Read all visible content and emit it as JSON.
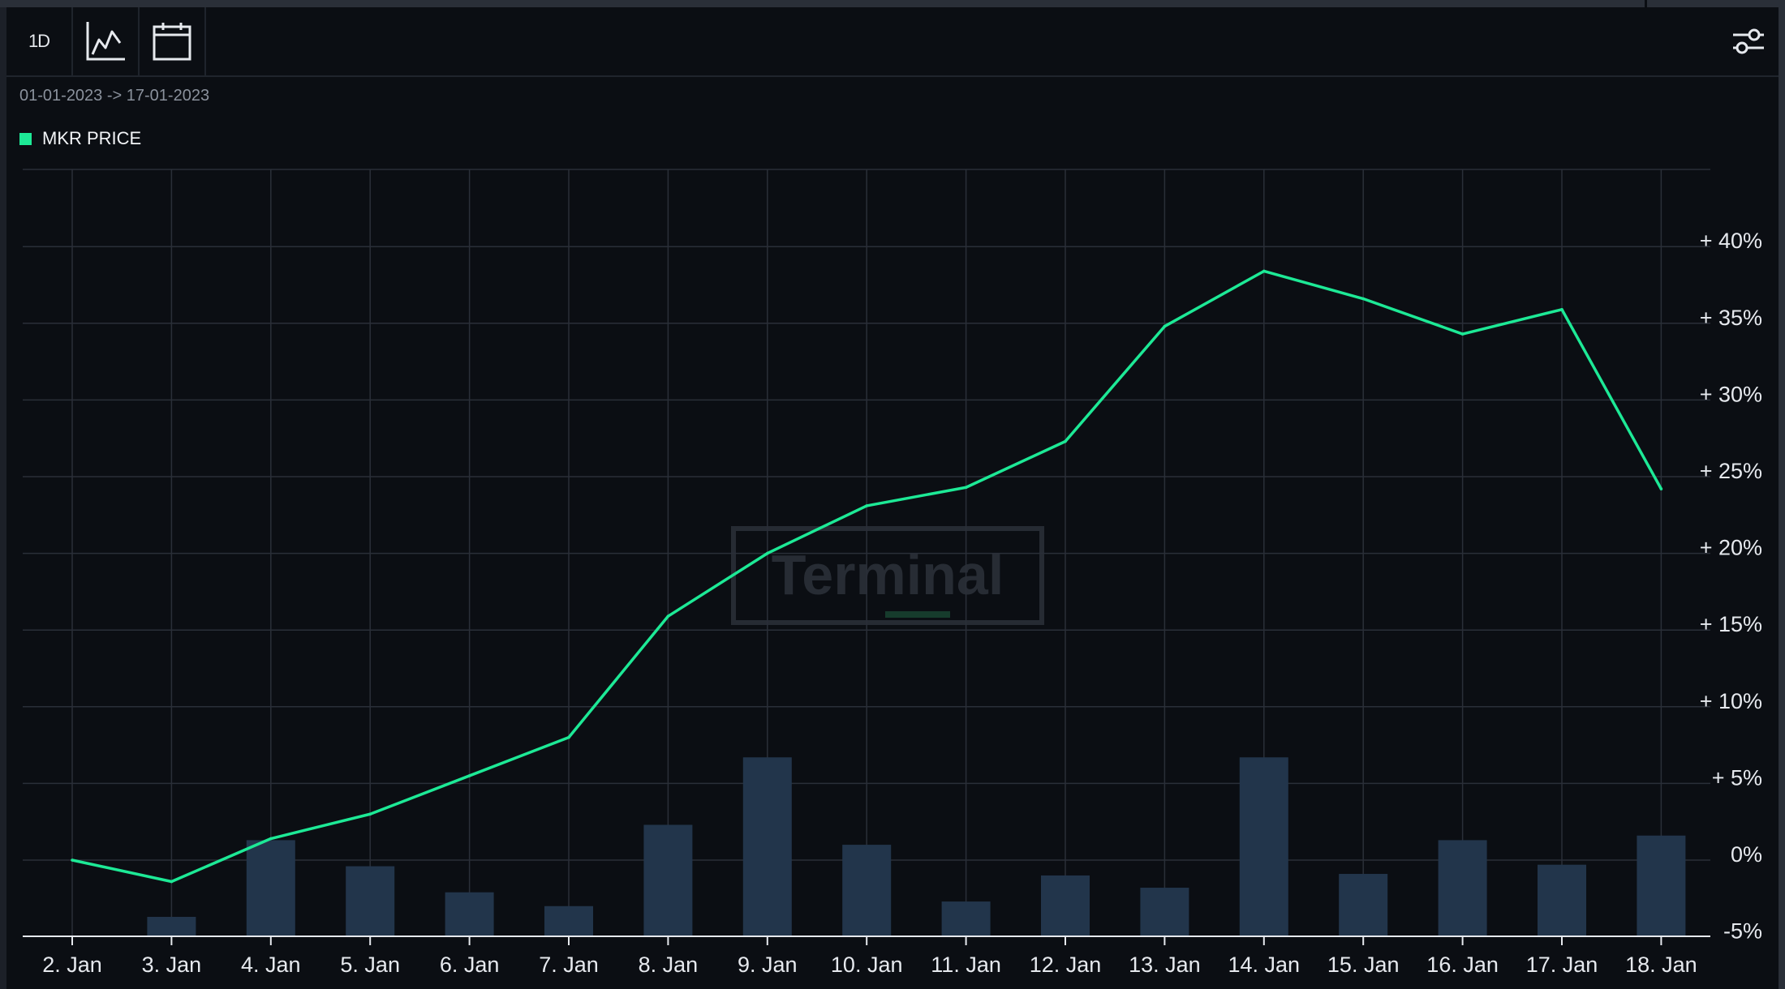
{
  "toolbar": {
    "period_label": "1D",
    "chart_type_icon": "line-chart-icon",
    "calendar_icon": "calendar-icon",
    "settings_icon": "sliders-icon"
  },
  "date_range": "01-01-2023 -> 17-01-2023",
  "watermark": "Terminal",
  "colors": {
    "background": "#0b0e13",
    "line": "#1de996",
    "bars": "#22354b",
    "grid": "#2a2f38",
    "text": "#e6e9ee"
  },
  "chart_data": {
    "type": "line",
    "title": "",
    "xlabel": "",
    "ylabel": "",
    "categories": [
      "2. Jan",
      "3. Jan",
      "4. Jan",
      "5. Jan",
      "6. Jan",
      "7. Jan",
      "8. Jan",
      "9. Jan",
      "10. Jan",
      "11. Jan",
      "12. Jan",
      "13. Jan",
      "14. Jan",
      "15. Jan",
      "16. Jan",
      "17. Jan",
      "18. Jan"
    ],
    "series": [
      {
        "name": "MKR PRICE",
        "type": "line",
        "values": [
          0.0,
          -1.4,
          1.4,
          3.0,
          5.5,
          8.0,
          15.9,
          20.0,
          23.1,
          24.3,
          27.3,
          34.8,
          38.4,
          36.6,
          34.3,
          35.9,
          24.2
        ]
      },
      {
        "type": "bar",
        "values": [
          null,
          -3.7,
          1.3,
          -0.4,
          -2.1,
          -3.0,
          2.3,
          6.7,
          1.0,
          -2.7,
          -1.0,
          -1.8,
          6.7,
          -0.9,
          1.3,
          -0.3,
          1.6
        ]
      }
    ],
    "y_axis": {
      "position": "right",
      "ticks": [
        40,
        35,
        30,
        25,
        20,
        15,
        10,
        5,
        0,
        -5
      ],
      "tick_labels": [
        "+ 40%",
        "+ 35%",
        "+ 30%",
        "+ 25%",
        "+ 20%",
        "+ 15%",
        "+ 10%",
        "+ 5%",
        "0%",
        "-5%"
      ],
      "ylim": [
        -5,
        45
      ]
    },
    "grid": true,
    "legend": "top-left"
  }
}
